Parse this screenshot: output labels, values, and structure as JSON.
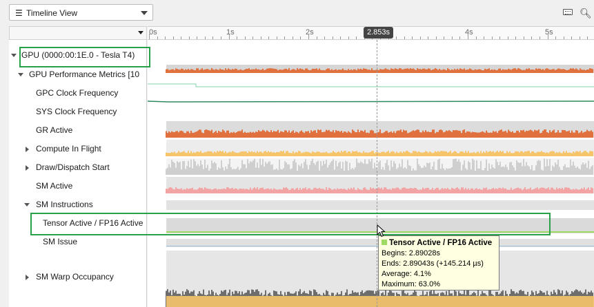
{
  "toolbar": {
    "view_select": "Timeline View",
    "icons": [
      "hamburger-icon",
      "keyboard-icon",
      "zoom-icon"
    ]
  },
  "ruler": {
    "ticks": [
      "0s",
      "1s",
      "2s",
      "3s",
      "4s",
      "5s"
    ],
    "cursor_time": "2.853s"
  },
  "tree": {
    "gpu_label": "GPU (0000:00:1E.0 - Tesla T4)",
    "metrics_label": "GPU Performance Metrics [10",
    "rows": [
      "GPC Clock Frequency",
      "SYS Clock Frequency",
      "GR Active",
      "Compute In Flight",
      "Draw/Dispatch Start",
      "SM Active",
      "SM Instructions",
      "Tensor Active / FP16 Active",
      "SM Issue",
      "SM Warp Occupancy"
    ]
  },
  "tooltip": {
    "title": "Tensor Active / FP16 Active",
    "begins": "Begins: 2.89028s",
    "ends": "Ends: 2.89043s (+145.214 µs)",
    "average": "Average: 4.1%",
    "maximum": "Maximum: 63.0%"
  },
  "colors": {
    "gr_active": "#e0703e",
    "compute_in_flight": "#f6c46a",
    "sm_active": "#f2a3a3",
    "tensor": "#9ddb62",
    "clock_line": "#2b8a5a",
    "track_gray": "#d6d6d6",
    "highlight": "#27a048"
  }
}
